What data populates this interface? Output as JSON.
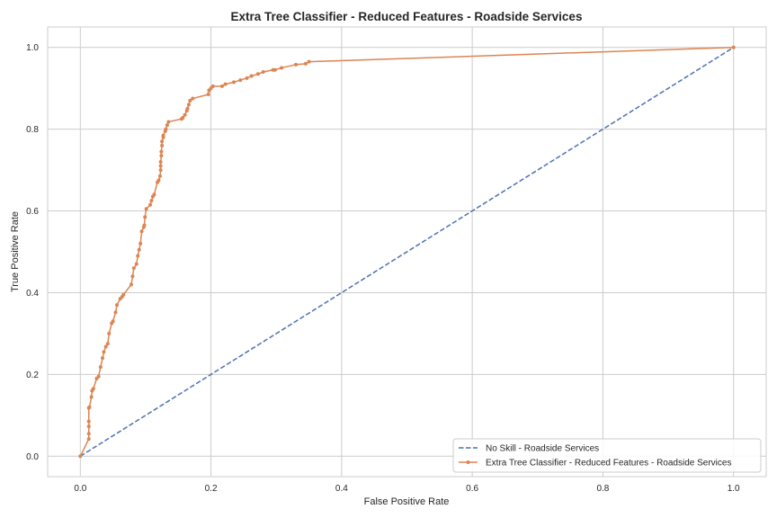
{
  "chart_data": {
    "type": "line",
    "title": "Extra Tree Classifier - Reduced Features - Roadside Services",
    "xlabel": "False Positive Rate",
    "ylabel": "True Positive Rate",
    "xlim": [
      -0.05,
      1.05
    ],
    "ylim": [
      -0.05,
      1.05
    ],
    "xticks": [
      "0.0",
      "0.2",
      "0.4",
      "0.6",
      "0.8",
      "1.0"
    ],
    "yticks": [
      "0.0",
      "0.2",
      "0.4",
      "0.6",
      "0.8",
      "1.0"
    ],
    "grid": true,
    "legend_position": "lower-right",
    "series": [
      {
        "name": "No Skill - Roadside Services",
        "color": "#4c72b0",
        "style": "dashed",
        "marker": "none",
        "x": [
          0.0,
          1.0
        ],
        "y": [
          0.0,
          1.0
        ]
      },
      {
        "name": "Extra Tree Classifier - Reduced Features - Roadside Services",
        "color": "#dd8452",
        "style": "solid",
        "marker": "dot",
        "x": [
          0.0,
          0.013,
          0.013,
          0.013,
          0.013,
          0.013,
          0.014,
          0.017,
          0.018,
          0.02,
          0.025,
          0.028,
          0.031,
          0.034,
          0.036,
          0.039,
          0.042,
          0.044,
          0.048,
          0.05,
          0.054,
          0.056,
          0.061,
          0.064,
          0.066,
          0.078,
          0.08,
          0.082,
          0.086,
          0.088,
          0.09,
          0.092,
          0.094,
          0.097,
          0.098,
          0.099,
          0.101,
          0.107,
          0.109,
          0.111,
          0.113,
          0.118,
          0.12,
          0.122,
          0.123,
          0.123,
          0.123,
          0.124,
          0.124,
          0.125,
          0.125,
          0.127,
          0.127,
          0.13,
          0.131,
          0.133,
          0.135,
          0.155,
          0.157,
          0.16,
          0.163,
          0.164,
          0.166,
          0.168,
          0.172,
          0.196,
          0.197,
          0.2,
          0.203,
          0.217,
          0.222,
          0.235,
          0.245,
          0.255,
          0.262,
          0.272,
          0.28,
          0.295,
          0.298,
          0.308,
          0.33,
          0.345,
          0.35,
          1.0
        ],
        "y": [
          0.0,
          0.042,
          0.055,
          0.073,
          0.085,
          0.118,
          0.12,
          0.145,
          0.16,
          0.165,
          0.19,
          0.195,
          0.218,
          0.24,
          0.255,
          0.268,
          0.275,
          0.3,
          0.325,
          0.33,
          0.352,
          0.37,
          0.385,
          0.39,
          0.395,
          0.42,
          0.44,
          0.46,
          0.47,
          0.49,
          0.505,
          0.52,
          0.55,
          0.56,
          0.565,
          0.585,
          0.605,
          0.615,
          0.625,
          0.635,
          0.64,
          0.67,
          0.675,
          0.685,
          0.7,
          0.71,
          0.72,
          0.735,
          0.745,
          0.76,
          0.77,
          0.78,
          0.785,
          0.795,
          0.8,
          0.81,
          0.818,
          0.825,
          0.828,
          0.835,
          0.845,
          0.85,
          0.86,
          0.87,
          0.875,
          0.885,
          0.895,
          0.9,
          0.905,
          0.905,
          0.91,
          0.915,
          0.92,
          0.925,
          0.93,
          0.935,
          0.94,
          0.945,
          0.945,
          0.95,
          0.958,
          0.96,
          0.965,
          1.0
        ]
      }
    ]
  },
  "colors": {
    "grid": "#cccccc",
    "axes_edge": "#cccccc",
    "text": "#262626"
  }
}
